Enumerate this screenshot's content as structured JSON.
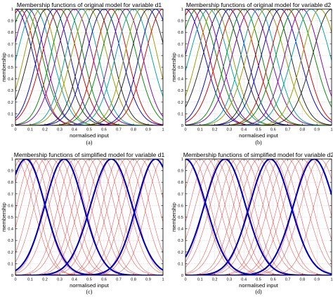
{
  "figure": {
    "panels": [
      {
        "title": "Membership functions of original model for variable d1",
        "caption": "(a)"
      },
      {
        "title": "Membership functions of original model for variable d2",
        "caption": "(b)"
      },
      {
        "title": "Membership functions of simplified model for variable d1",
        "caption": "(c)"
      },
      {
        "title": "Membership functions of simplified model for variable d2",
        "caption": "(d)"
      }
    ]
  },
  "chart_data": [
    {
      "type": "line",
      "title": "Membership functions of original model for variable d1",
      "xlabel": "normalised input",
      "ylabel": "membership",
      "xlim": [
        0,
        1
      ],
      "ylim": [
        0,
        1
      ],
      "xticks": [
        "0",
        "0.1",
        "0.2",
        "0.3",
        "0.4",
        "0.5",
        "0.6",
        "0.7",
        "0.8",
        "0.9",
        "1"
      ],
      "yticks": [
        "0",
        "0.1",
        "0.2",
        "0.3",
        "0.4",
        "0.5",
        "0.6",
        "0.7",
        "0.8",
        "0.9",
        "1"
      ],
      "grid": true,
      "function": "gaussian",
      "series": [
        {
          "center": 0.0,
          "sigma": 0.12,
          "color": "#0000cc"
        },
        {
          "center": 0.03,
          "sigma": 0.11,
          "color": "#cc0000"
        },
        {
          "center": 0.06,
          "sigma": 0.12,
          "color": "#008800"
        },
        {
          "center": 0.09,
          "sigma": 0.11,
          "color": "#7a00aa"
        },
        {
          "center": 0.13,
          "sigma": 0.12,
          "color": "#00a0a0"
        },
        {
          "center": 0.17,
          "sigma": 0.11,
          "color": "#999900"
        },
        {
          "center": 0.21,
          "sigma": 0.12,
          "color": "#222222"
        },
        {
          "center": 0.26,
          "sigma": 0.11,
          "color": "#0000cc"
        },
        {
          "center": 0.3,
          "sigma": 0.12,
          "color": "#cc0000"
        },
        {
          "center": 0.35,
          "sigma": 0.11,
          "color": "#008800"
        },
        {
          "center": 0.4,
          "sigma": 0.12,
          "color": "#7a00aa"
        },
        {
          "center": 0.45,
          "sigma": 0.11,
          "color": "#00a0a0"
        },
        {
          "center": 0.5,
          "sigma": 0.12,
          "color": "#999900"
        },
        {
          "center": 0.55,
          "sigma": 0.11,
          "color": "#222222"
        },
        {
          "center": 0.6,
          "sigma": 0.12,
          "color": "#0000cc"
        },
        {
          "center": 0.65,
          "sigma": 0.11,
          "color": "#cc0000"
        },
        {
          "center": 0.7,
          "sigma": 0.12,
          "color": "#008800"
        },
        {
          "center": 0.75,
          "sigma": 0.11,
          "color": "#7a00aa"
        },
        {
          "center": 0.8,
          "sigma": 0.12,
          "color": "#00a0a0"
        },
        {
          "center": 0.85,
          "sigma": 0.11,
          "color": "#999900"
        },
        {
          "center": 0.9,
          "sigma": 0.12,
          "color": "#222222"
        },
        {
          "center": 0.95,
          "sigma": 0.11,
          "color": "#0000cc"
        },
        {
          "center": 1.0,
          "sigma": 0.12,
          "color": "#cc0000"
        }
      ]
    },
    {
      "type": "line",
      "title": "Membership functions of original model for variable d2",
      "xlabel": "normalised input",
      "ylabel": "membership",
      "xlim": [
        0,
        1
      ],
      "ylim": [
        0,
        1
      ],
      "xticks": [
        "0",
        "0.1",
        "0.2",
        "0.3",
        "0.4",
        "0.5",
        "0.6",
        "0.7",
        "0.8",
        "0.9",
        "1"
      ],
      "yticks": [
        "0",
        "0.1",
        "0.2",
        "0.3",
        "0.4",
        "0.5",
        "0.6",
        "0.7",
        "0.8",
        "0.9",
        "1"
      ],
      "grid": true,
      "function": "gaussian",
      "series": [
        {
          "center": 0.0,
          "sigma": 0.13,
          "color": "#0000cc"
        },
        {
          "center": 0.04,
          "sigma": 0.12,
          "color": "#cc0000"
        },
        {
          "center": 0.08,
          "sigma": 0.13,
          "color": "#008800"
        },
        {
          "center": 0.12,
          "sigma": 0.12,
          "color": "#7a00aa"
        },
        {
          "center": 0.16,
          "sigma": 0.13,
          "color": "#00a0a0"
        },
        {
          "center": 0.2,
          "sigma": 0.12,
          "color": "#999900"
        },
        {
          "center": 0.25,
          "sigma": 0.13,
          "color": "#222222"
        },
        {
          "center": 0.3,
          "sigma": 0.12,
          "color": "#0000cc"
        },
        {
          "center": 0.35,
          "sigma": 0.13,
          "color": "#cc0000"
        },
        {
          "center": 0.4,
          "sigma": 0.12,
          "color": "#008800"
        },
        {
          "center": 0.45,
          "sigma": 0.13,
          "color": "#7a00aa"
        },
        {
          "center": 0.5,
          "sigma": 0.12,
          "color": "#00a0a0"
        },
        {
          "center": 0.55,
          "sigma": 0.13,
          "color": "#999900"
        },
        {
          "center": 0.6,
          "sigma": 0.12,
          "color": "#222222"
        },
        {
          "center": 0.65,
          "sigma": 0.13,
          "color": "#0000cc"
        },
        {
          "center": 0.7,
          "sigma": 0.12,
          "color": "#cc0000"
        },
        {
          "center": 0.75,
          "sigma": 0.13,
          "color": "#008800"
        },
        {
          "center": 0.8,
          "sigma": 0.12,
          "color": "#7a00aa"
        },
        {
          "center": 0.86,
          "sigma": 0.13,
          "color": "#00a0a0"
        },
        {
          "center": 0.92,
          "sigma": 0.12,
          "color": "#999900"
        },
        {
          "center": 1.0,
          "sigma": 0.13,
          "color": "#222222"
        }
      ]
    },
    {
      "type": "line",
      "title": "Membership functions of simplified model for variable d1",
      "xlabel": "normalised input",
      "ylabel": "membership",
      "xlim": [
        0,
        1
      ],
      "ylim": [
        0,
        1
      ],
      "xticks": [
        "0",
        "0.1",
        "0.2",
        "0.3",
        "0.4",
        "0.5",
        "0.6",
        "0.7",
        "0.8",
        "0.9",
        "1"
      ],
      "yticks": [
        "0",
        "0.1",
        "0.2",
        "0.3",
        "0.4",
        "0.5",
        "0.6",
        "0.7",
        "0.8",
        "0.9",
        "1"
      ],
      "grid": true,
      "function": "gaussian",
      "series": [
        {
          "group": "original",
          "center": 0.0,
          "sigma": 0.12,
          "color": "#e03030"
        },
        {
          "group": "original",
          "center": 0.04,
          "sigma": 0.11,
          "color": "#e03030"
        },
        {
          "group": "original",
          "center": 0.08,
          "sigma": 0.12,
          "color": "#e03030"
        },
        {
          "group": "original",
          "center": 0.12,
          "sigma": 0.11,
          "color": "#e03030"
        },
        {
          "group": "original",
          "center": 0.16,
          "sigma": 0.12,
          "color": "#e03030"
        },
        {
          "group": "original",
          "center": 0.2,
          "sigma": 0.11,
          "color": "#e03030"
        },
        {
          "group": "original",
          "center": 0.25,
          "sigma": 0.12,
          "color": "#e03030"
        },
        {
          "group": "original",
          "center": 0.3,
          "sigma": 0.11,
          "color": "#e03030"
        },
        {
          "group": "original",
          "center": 0.35,
          "sigma": 0.12,
          "color": "#e03030"
        },
        {
          "group": "original",
          "center": 0.4,
          "sigma": 0.11,
          "color": "#e03030"
        },
        {
          "group": "original",
          "center": 0.45,
          "sigma": 0.12,
          "color": "#e03030"
        },
        {
          "group": "original",
          "center": 0.5,
          "sigma": 0.11,
          "color": "#e03030"
        },
        {
          "group": "original",
          "center": 0.55,
          "sigma": 0.12,
          "color": "#e03030"
        },
        {
          "group": "original",
          "center": 0.6,
          "sigma": 0.11,
          "color": "#e03030"
        },
        {
          "group": "original",
          "center": 0.65,
          "sigma": 0.12,
          "color": "#e03030"
        },
        {
          "group": "original",
          "center": 0.7,
          "sigma": 0.11,
          "color": "#e03030"
        },
        {
          "group": "original",
          "center": 0.75,
          "sigma": 0.12,
          "color": "#e03030"
        },
        {
          "group": "original",
          "center": 0.8,
          "sigma": 0.11,
          "color": "#e03030"
        },
        {
          "group": "original",
          "center": 0.85,
          "sigma": 0.12,
          "color": "#e03030"
        },
        {
          "group": "original",
          "center": 0.9,
          "sigma": 0.11,
          "color": "#e03030"
        },
        {
          "group": "original",
          "center": 0.95,
          "sigma": 0.12,
          "color": "#e03030"
        },
        {
          "group": "original",
          "center": 1.0,
          "sigma": 0.11,
          "color": "#e03030"
        },
        {
          "group": "simplified",
          "center": 0.07,
          "sigma": 0.13,
          "color": "#0000bb"
        },
        {
          "group": "simplified",
          "center": 0.33,
          "sigma": 0.13,
          "color": "#0000bb"
        },
        {
          "group": "simplified",
          "center": 0.65,
          "sigma": 0.14,
          "color": "#0000bb"
        },
        {
          "group": "simplified",
          "center": 0.95,
          "sigma": 0.13,
          "color": "#0000bb"
        }
      ]
    },
    {
      "type": "line",
      "title": "Membership functions of simplified model for variable d2",
      "xlabel": "normalised input",
      "ylabel": "membership",
      "xlim": [
        0,
        1
      ],
      "ylim": [
        0,
        1
      ],
      "xticks": [
        "0",
        "0.1",
        "0.2",
        "0.3",
        "0.4",
        "0.5",
        "0.6",
        "0.7",
        "0.8",
        "0.9",
        "1"
      ],
      "yticks": [
        "0",
        "0.1",
        "0.2",
        "0.3",
        "0.4",
        "0.5",
        "0.6",
        "0.7",
        "0.8",
        "0.9",
        "1"
      ],
      "grid": true,
      "function": "gaussian",
      "series": [
        {
          "group": "original",
          "center": 0.0,
          "sigma": 0.13,
          "color": "#e03030"
        },
        {
          "group": "original",
          "center": 0.05,
          "sigma": 0.12,
          "color": "#e03030"
        },
        {
          "group": "original",
          "center": 0.1,
          "sigma": 0.13,
          "color": "#e03030"
        },
        {
          "group": "original",
          "center": 0.15,
          "sigma": 0.12,
          "color": "#e03030"
        },
        {
          "group": "original",
          "center": 0.2,
          "sigma": 0.13,
          "color": "#e03030"
        },
        {
          "group": "original",
          "center": 0.25,
          "sigma": 0.12,
          "color": "#e03030"
        },
        {
          "group": "original",
          "center": 0.3,
          "sigma": 0.13,
          "color": "#e03030"
        },
        {
          "group": "original",
          "center": 0.35,
          "sigma": 0.12,
          "color": "#e03030"
        },
        {
          "group": "original",
          "center": 0.4,
          "sigma": 0.13,
          "color": "#e03030"
        },
        {
          "group": "original",
          "center": 0.45,
          "sigma": 0.12,
          "color": "#e03030"
        },
        {
          "group": "original",
          "center": 0.5,
          "sigma": 0.13,
          "color": "#e03030"
        },
        {
          "group": "original",
          "center": 0.55,
          "sigma": 0.12,
          "color": "#e03030"
        },
        {
          "group": "original",
          "center": 0.6,
          "sigma": 0.13,
          "color": "#e03030"
        },
        {
          "group": "original",
          "center": 0.65,
          "sigma": 0.12,
          "color": "#e03030"
        },
        {
          "group": "original",
          "center": 0.7,
          "sigma": 0.13,
          "color": "#e03030"
        },
        {
          "group": "original",
          "center": 0.75,
          "sigma": 0.12,
          "color": "#e03030"
        },
        {
          "group": "original",
          "center": 0.8,
          "sigma": 0.13,
          "color": "#e03030"
        },
        {
          "group": "original",
          "center": 0.86,
          "sigma": 0.12,
          "color": "#e03030"
        },
        {
          "group": "original",
          "center": 0.92,
          "sigma": 0.13,
          "color": "#e03030"
        },
        {
          "group": "original",
          "center": 1.0,
          "sigma": 0.12,
          "color": "#e03030"
        },
        {
          "group": "simplified",
          "center": 0.0,
          "sigma": 0.14,
          "color": "#0000bb"
        },
        {
          "group": "simplified",
          "center": 0.27,
          "sigma": 0.14,
          "color": "#0000bb"
        },
        {
          "group": "simplified",
          "center": 0.58,
          "sigma": 0.14,
          "color": "#0000bb"
        },
        {
          "group": "simplified",
          "center": 0.88,
          "sigma": 0.14,
          "color": "#0000bb"
        }
      ]
    }
  ]
}
